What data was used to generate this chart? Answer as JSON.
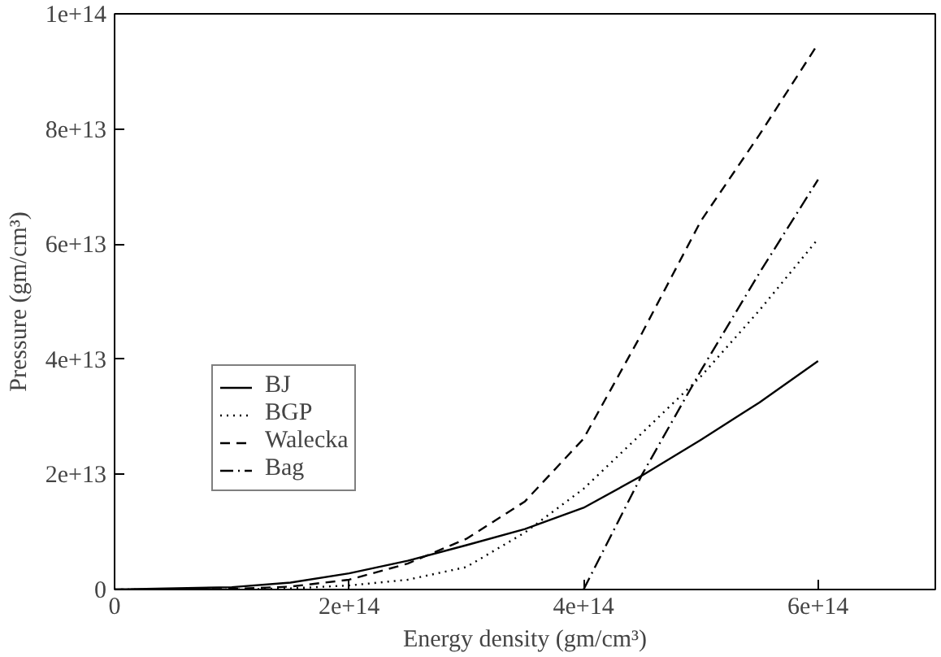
{
  "chart_data": {
    "type": "line",
    "xlabel": "Energy density (gm/cm³)",
    "ylabel": "Pressure (gm/cm³)",
    "xlim": [
      0,
      700000000000000.0
    ],
    "ylim": [
      0,
      100000000000000.0
    ],
    "xticks": [
      0,
      {
        "value": 200000000000000.0,
        "label": "2e+14"
      },
      {
        "value": 400000000000000.0,
        "label": "4e+14"
      },
      {
        "value": 600000000000000.0,
        "label": "6e+14"
      }
    ],
    "yticks": [
      0,
      {
        "value": 20000000000000.0,
        "label": "2e+13"
      },
      {
        "value": 40000000000000.0,
        "label": "4e+13"
      },
      {
        "value": 60000000000000.0,
        "label": "6e+13"
      },
      {
        "value": 80000000000000.0,
        "label": "8e+13"
      },
      {
        "value": 100000000000000.0,
        "label": "1e+14"
      }
    ],
    "grid": false,
    "legend": "bottom left",
    "marker": "none",
    "series": [
      {
        "name": "BJ",
        "color": "#000000",
        "line_style": "solid",
        "x": [
          0,
          100000000000000.0,
          150000000000000.0,
          200000000000000.0,
          250000000000000.0,
          300000000000000.0,
          350000000000000.0,
          400000000000000.0,
          450000000000000.0,
          500000000000000.0,
          550000000000000.0,
          600000000000000.0
        ],
        "values": [
          0,
          400000000000.0,
          1200000000000.0,
          2800000000000.0,
          5000000000000.0,
          7700000000000.0,
          10500000000000.0,
          14200000000000.0,
          19800000000000.0,
          26000000000000.0,
          32500000000000.0,
          39700000000000.0
        ]
      },
      {
        "name": "BGP",
        "color": "#000000",
        "line_style": "dotted",
        "x": [
          0,
          100000000000000.0,
          150000000000000.0,
          200000000000000.0,
          250000000000000.0,
          300000000000000.0,
          350000000000000.0,
          400000000000000.0,
          450000000000000.0,
          500000000000000.0,
          550000000000000.0,
          600000000000000.0
        ],
        "values": [
          0,
          0,
          200000000000.0,
          700000000000.0,
          1700000000000.0,
          3900000000000.0,
          9900000000000.0,
          17500000000000.0,
          27200000000000.0,
          37000000000000.0,
          48500000000000.0,
          60900000000000.0
        ]
      },
      {
        "name": "Walecka",
        "color": "#000000",
        "line_style": "dashed",
        "x": [
          0,
          100000000000000.0,
          150000000000000.0,
          200000000000000.0,
          250000000000000.0,
          300000000000000.0,
          350000000000000.0,
          400000000000000.0,
          450000000000000.0,
          500000000000000.0,
          550000000000000.0,
          600000000000000.0
        ],
        "values": [
          0,
          100000000000.0,
          500000000000.0,
          1700000000000.0,
          4500000000000.0,
          8800000000000.0,
          15300000000000.0,
          26200000000000.0,
          44600000000000.0,
          64000000000000.0,
          79000000000000.0,
          94800000000000.0
        ]
      },
      {
        "name": "Bag",
        "color": "#000000",
        "line_style": "dashdot",
        "x": [
          400000000000000.0,
          450000000000000.0,
          500000000000000.0,
          550000000000000.0,
          600000000000000.0
        ],
        "values": [
          0,
          20000000000000.0,
          38000000000000.0,
          55000000000000.0,
          71200000000000.0
        ]
      }
    ]
  }
}
